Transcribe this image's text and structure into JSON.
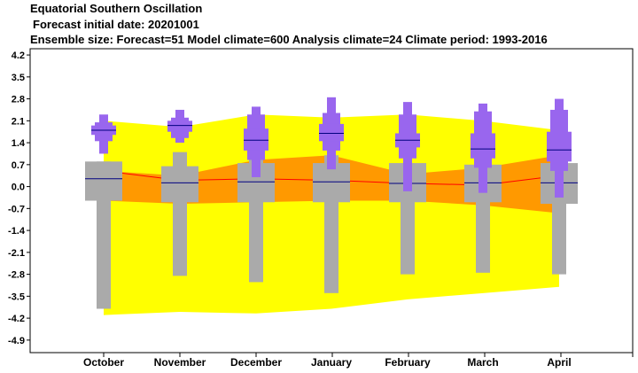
{
  "header": {
    "title": "Equatorial Southern Oscillation",
    "subtitle": "Forecast initial date: 20201001",
    "info": "Ensemble size: Forecast=51 Model climate=600 Analysis climate=24   Climate period: 1993-2016"
  },
  "chart_data": {
    "type": "box",
    "categories": [
      "October",
      "November",
      "December",
      "January",
      "February",
      "March",
      "April"
    ],
    "yticks": [
      "4.2",
      "3.5",
      "2.8",
      "2.1",
      "1.4",
      "0.7",
      "0.0",
      "-0.7",
      "-1.4",
      "-2.1",
      "-2.8",
      "-3.5",
      "-4.2",
      "-4.9"
    ],
    "ylim": [
      -5.3,
      4.4
    ],
    "grid": false,
    "colors": {
      "outer_band": "#ffff00",
      "inner_band": "#ff9900",
      "median_line": "#ff0000",
      "climate_box": "#aaaaaa",
      "forecast_box": "#9966ee",
      "median_mark": "#000080"
    },
    "analysis_climate": {
      "outer_upper": [
        2.1,
        1.9,
        2.3,
        2.2,
        2.3,
        2.1,
        1.8
      ],
      "inner_upper": [
        0.5,
        0.35,
        0.85,
        1.0,
        0.4,
        0.6,
        1.0
      ],
      "median": [
        0.5,
        0.2,
        0.25,
        0.2,
        0.1,
        0.05,
        0.35
      ],
      "inner_lower": [
        -0.45,
        -0.55,
        -0.5,
        -0.45,
        -0.45,
        -0.6,
        -0.85
      ],
      "outer_lower": [
        -4.1,
        -4.0,
        -4.05,
        -3.9,
        -3.6,
        -3.4,
        -3.2
      ]
    },
    "model_climate": {
      "max": [
        0.8,
        1.1,
        0.9,
        1.0,
        0.75,
        0.8,
        0.75
      ],
      "q90": [
        0.8,
        0.65,
        0.75,
        0.75,
        0.75,
        0.7,
        0.75
      ],
      "q75": [
        0.55,
        0.5,
        0.45,
        0.5,
        0.45,
        0.4,
        0.45
      ],
      "median": [
        0.25,
        0.12,
        0.15,
        0.15,
        0.1,
        0.12,
        0.12
      ],
      "q25": [
        -0.25,
        -0.3,
        -0.3,
        -0.3,
        -0.3,
        -0.3,
        -0.3
      ],
      "q10": [
        -0.45,
        -0.5,
        -0.5,
        -0.5,
        -0.5,
        -0.5,
        -0.55
      ],
      "min": [
        -3.9,
        -2.85,
        -3.05,
        -3.4,
        -2.8,
        -2.75,
        -2.8
      ]
    },
    "forecast": {
      "max": [
        2.3,
        2.45,
        2.55,
        2.85,
        2.7,
        2.65,
        2.8
      ],
      "q90": [
        2.05,
        2.2,
        2.3,
        2.35,
        2.3,
        2.4,
        2.45
      ],
      "q75": [
        1.95,
        2.1,
        1.85,
        2.0,
        1.7,
        1.7,
        1.75
      ],
      "median": [
        1.8,
        1.95,
        1.48,
        1.7,
        1.48,
        1.2,
        1.17
      ],
      "q25": [
        1.65,
        1.75,
        1.15,
        1.45,
        1.25,
        0.9,
        0.8
      ],
      "q10": [
        1.45,
        1.55,
        0.85,
        1.15,
        0.9,
        0.6,
        0.5
      ],
      "min": [
        1.05,
        1.4,
        0.3,
        0.55,
        -0.15,
        -0.2,
        -0.35
      ]
    }
  }
}
